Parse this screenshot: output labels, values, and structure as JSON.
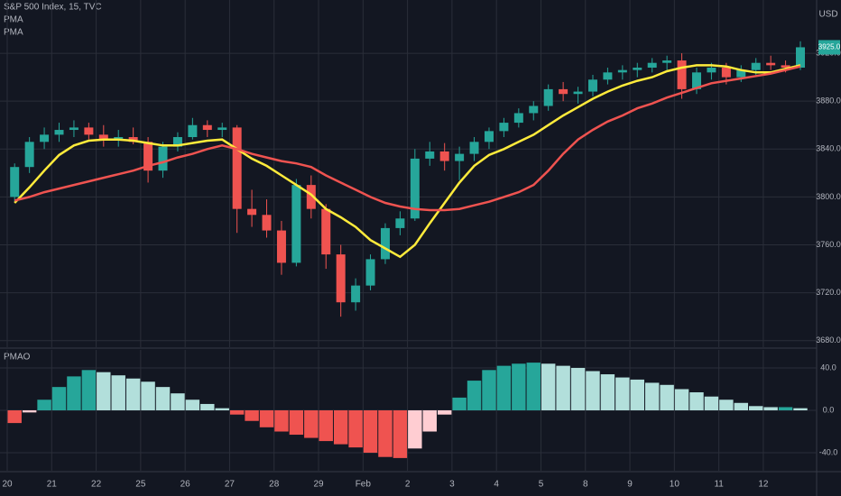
{
  "chart_data": [
    {
      "type": "candlestick",
      "title": "S&P 500 Index, 15, TVC",
      "y_unit": "USD",
      "last_label": "3925.0",
      "categories": [
        "20",
        null,
        null,
        "21",
        null,
        null,
        "22",
        null,
        null,
        "25",
        null,
        null,
        "26",
        null,
        null,
        "27",
        null,
        null,
        "28",
        null,
        null,
        "29",
        null,
        null,
        "Feb",
        null,
        null,
        "2",
        null,
        null,
        "3",
        null,
        null,
        "4",
        null,
        null,
        "5",
        null,
        null,
        "8",
        null,
        null,
        "9",
        null,
        null,
        "10",
        null,
        null,
        "11",
        null,
        null,
        "12",
        null,
        null
      ],
      "open": [
        3800,
        3825,
        3846,
        3852,
        3856,
        3858,
        3852,
        3848,
        3850,
        3846,
        3822,
        3842,
        3850,
        3860,
        3856,
        3858,
        3790,
        3785,
        3772,
        3745,
        3810,
        3790,
        3752,
        3712,
        3726,
        3748,
        3774,
        3782,
        3832,
        3838,
        3830,
        3836,
        3846,
        3855,
        3862,
        3870,
        3876,
        3890,
        3886,
        3888,
        3898,
        3904,
        3906,
        3908,
        3912,
        3914,
        3890,
        3904,
        3908,
        3900,
        3906,
        3912,
        3910,
        3908
      ],
      "high": [
        3828,
        3850,
        3858,
        3862,
        3864,
        3862,
        3860,
        3856,
        3858,
        3850,
        3846,
        3854,
        3866,
        3864,
        3862,
        3860,
        3806,
        3798,
        3780,
        3815,
        3818,
        3794,
        3760,
        3732,
        3752,
        3778,
        3788,
        3840,
        3846,
        3845,
        3842,
        3850,
        3858,
        3866,
        3874,
        3880,
        3894,
        3896,
        3892,
        3902,
        3908,
        3910,
        3912,
        3916,
        3918,
        3920,
        3908,
        3912,
        3912,
        3910,
        3916,
        3918,
        3914,
        3930
      ],
      "low": [
        3796,
        3820,
        3840,
        3846,
        3850,
        3848,
        3842,
        3842,
        3844,
        3812,
        3816,
        3838,
        3848,
        3850,
        3850,
        3770,
        3775,
        3766,
        3735,
        3742,
        3782,
        3740,
        3700,
        3705,
        3722,
        3744,
        3768,
        3780,
        3826,
        3822,
        3814,
        3830,
        3840,
        3850,
        3858,
        3864,
        3872,
        3880,
        3878,
        3884,
        3894,
        3898,
        3900,
        3904,
        3906,
        3882,
        3886,
        3898,
        3894,
        3896,
        3902,
        3906,
        3904,
        3906
      ],
      "close": [
        3825,
        3846,
        3852,
        3856,
        3858,
        3852,
        3848,
        3850,
        3846,
        3822,
        3842,
        3850,
        3860,
        3856,
        3858,
        3790,
        3785,
        3772,
        3745,
        3810,
        3790,
        3752,
        3712,
        3726,
        3748,
        3774,
        3782,
        3832,
        3838,
        3830,
        3836,
        3846,
        3855,
        3862,
        3870,
        3876,
        3890,
        3886,
        3888,
        3898,
        3904,
        3906,
        3908,
        3912,
        3914,
        3890,
        3904,
        3908,
        3900,
        3906,
        3912,
        3910,
        3908,
        3925
      ],
      "up_color": "#26a69a",
      "down_color": "#ef5350",
      "series": [
        {
          "name": "PMA",
          "color": "#ffeb3b",
          "values": [
            3795,
            3808,
            3822,
            3835,
            3843,
            3847,
            3848,
            3848,
            3847,
            3845,
            3843,
            3843,
            3845,
            3847,
            3848,
            3840,
            3832,
            3826,
            3818,
            3810,
            3802,
            3790,
            3783,
            3775,
            3764,
            3757,
            3750,
            3760,
            3778,
            3795,
            3812,
            3826,
            3835,
            3840,
            3846,
            3852,
            3860,
            3868,
            3875,
            3882,
            3888,
            3893,
            3897,
            3900,
            3905,
            3908,
            3910,
            3910,
            3909,
            3906,
            3904,
            3904,
            3907,
            3910
          ]
        },
        {
          "name": "PMA",
          "color": "#ef5350",
          "values": [
            3797,
            3800,
            3804,
            3807,
            3810,
            3813,
            3816,
            3819,
            3822,
            3826,
            3829,
            3833,
            3836,
            3840,
            3843,
            3840,
            3836,
            3833,
            3830,
            3828,
            3825,
            3818,
            3812,
            3806,
            3800,
            3795,
            3792,
            3790,
            3789,
            3789,
            3790,
            3793,
            3796,
            3800,
            3804,
            3810,
            3822,
            3836,
            3848,
            3856,
            3863,
            3868,
            3874,
            3878,
            3883,
            3887,
            3891,
            3895,
            3897,
            3899,
            3901,
            3903,
            3906,
            3909
          ]
        }
      ],
      "ylim": [
        3674.5,
        3964.5
      ],
      "yticks": [
        {
          "value": 3680,
          "label": "3680.0"
        },
        {
          "value": 3720,
          "label": "3720.0"
        },
        {
          "value": 3760,
          "label": "3760.0"
        },
        {
          "value": 3800,
          "label": "3800.0"
        },
        {
          "value": 3840,
          "label": "3840.0"
        },
        {
          "value": 3880,
          "label": "3880.0"
        },
        {
          "value": 3920,
          "label": "3920.0"
        }
      ],
      "grid": true
    },
    {
      "type": "bar",
      "title": "PMAO",
      "values": [
        -12,
        -2,
        10,
        22,
        32,
        38,
        36,
        33,
        30,
        27,
        22,
        16,
        10,
        6,
        2,
        -4,
        -10,
        -16,
        -20,
        -23,
        -26,
        -29,
        -32,
        -35,
        -40,
        -44,
        -45,
        -36,
        -20,
        -4,
        12,
        28,
        38,
        42,
        44,
        45,
        44,
        42,
        40,
        37,
        34,
        31,
        29,
        26,
        24,
        20,
        17,
        13,
        10,
        7,
        4,
        3,
        3,
        2
      ],
      "colors": {
        "pos_rising": "#26a69a",
        "pos_falling": "#b2dfdb",
        "neg_falling": "#ef5350",
        "neg_rising": "#ffcdd2"
      },
      "ylim": [
        -57,
        57
      ],
      "yticks": [
        {
          "value": 40,
          "label": "40.0"
        },
        {
          "value": 0,
          "label": "0.0"
        },
        {
          "value": -40,
          "label": "-40.0"
        }
      ],
      "grid": true
    }
  ]
}
